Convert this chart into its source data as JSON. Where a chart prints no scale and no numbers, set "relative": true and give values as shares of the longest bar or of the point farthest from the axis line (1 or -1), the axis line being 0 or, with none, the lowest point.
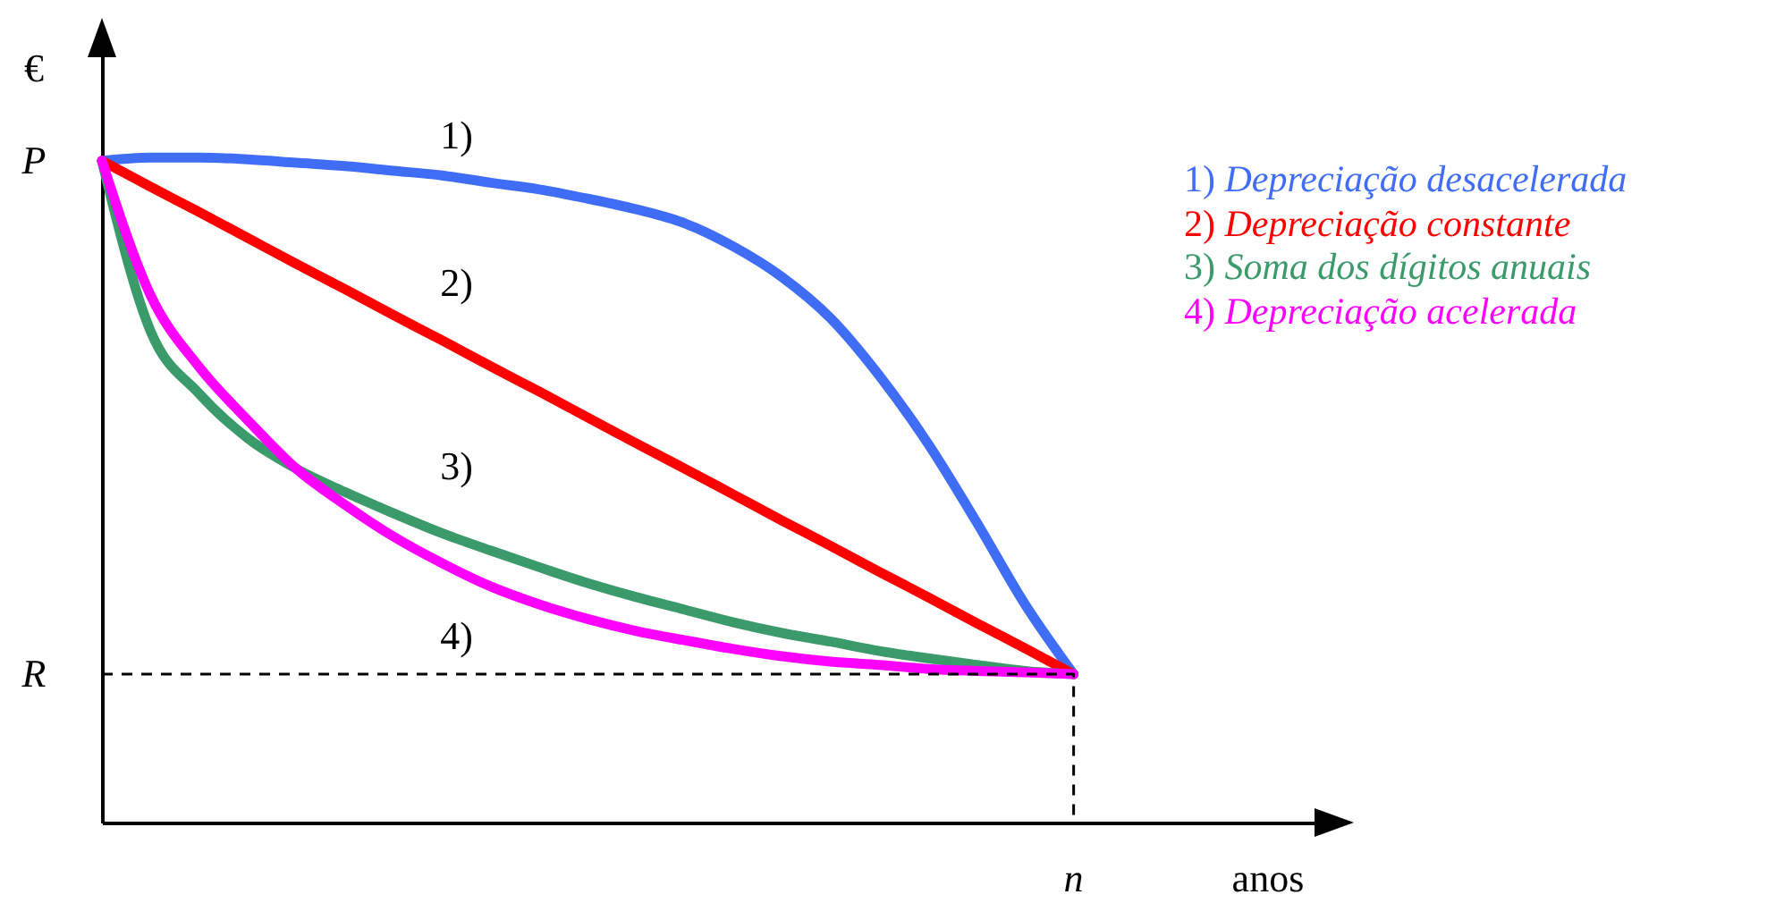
{
  "chart_data": {
    "type": "line",
    "relative": true,
    "xlabel": "anos",
    "ylabel": "€",
    "legend": "right",
    "line_style": "solid",
    "categories": [
      null,
      null,
      null,
      null,
      null,
      null,
      null,
      null,
      null,
      null,
      null,
      null,
      null,
      null,
      null,
      null,
      null,
      null,
      null,
      null,
      null
    ],
    "series": [
      {
        "name": "1) Depreciação desacelerada",
        "color": "#3f6df5",
        "values": [
          0.995,
          1,
          1,
          0.997,
          0.992,
          0.987,
          0.98,
          0.973,
          0.962,
          0.952,
          0.938,
          0.922,
          0.901,
          0.866,
          0.82,
          0.758,
          0.672,
          0.57,
          0.452,
          0.328,
          0.223
        ]
      },
      {
        "name": "2) Depreciação constante",
        "color": "#ff0000",
        "values": [
          0.995,
          0.956,
          0.918,
          0.879,
          0.84,
          0.802,
          0.763,
          0.725,
          0.686,
          0.648,
          0.609,
          0.57,
          0.532,
          0.493,
          0.454,
          0.416,
          0.377,
          0.339,
          0.3,
          0.262,
          0.223
        ]
      },
      {
        "name": "3) Soma dos dígitos anuais",
        "color": "#3a9a6a",
        "values": [
          0.995,
          0.739,
          0.645,
          0.578,
          0.532,
          0.497,
          0.465,
          0.435,
          0.409,
          0.384,
          0.36,
          0.339,
          0.32,
          0.301,
          0.285,
          0.272,
          0.258,
          0.247,
          0.237,
          0.228,
          0.223
        ]
      },
      {
        "name": "4) Depreciação acelerada",
        "color": "#ff00ff",
        "values": [
          0.995,
          0.793,
          0.685,
          0.605,
          0.532,
          0.478,
          0.43,
          0.39,
          0.355,
          0.328,
          0.306,
          0.288,
          0.274,
          0.261,
          0.25,
          0.242,
          0.237,
          0.231,
          0.228,
          0.226,
          0.223
        ]
      }
    ],
    "ref_lines": [
      {
        "axis": "y",
        "value": 0.223,
        "label": "R",
        "line_style": "dashed",
        "color": "#000000"
      }
    ],
    "annotations": [
      "P",
      "n",
      "1)",
      "2)",
      "3)",
      "4)"
    ]
  }
}
